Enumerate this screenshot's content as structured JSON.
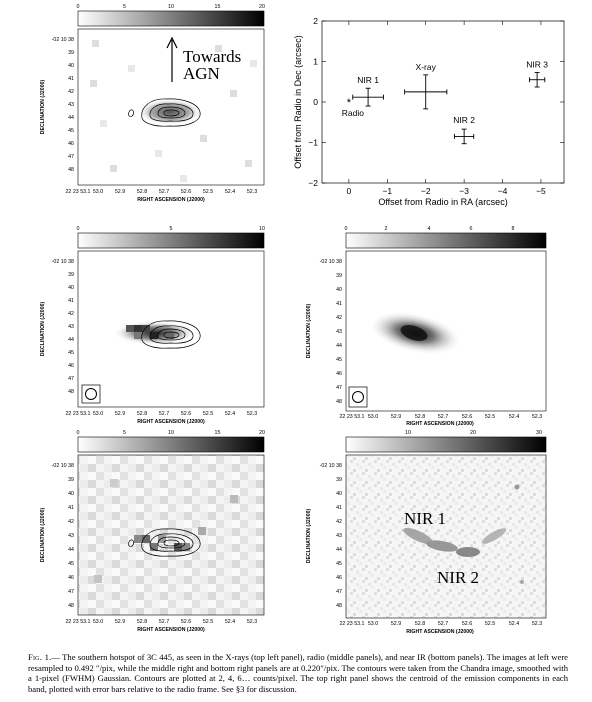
{
  "figure": {
    "caption": {
      "label": "Fig. 1.",
      "text": "— The southern hotspot of 3C 445, as seen in the X-rays (top left panel), radio (middle panels), and near IR (bottom panels). The images at left were resampled to 0.492 ″/pix, while the middle right and bottom right panels are at 0.220″/pix. The contours were taken from the Chandra image, smoothed with a 1-pixel (FWHM) Gaussian. Contours are plotted at 2, 4, 6… counts/pixel. The top right panel shows the centroid of the emission components in each band, plotted with error bars relative to the radio frame. See §3 for discussion."
    },
    "panels": {
      "top_left": {
        "colorbar_ticks": [
          "0",
          "5",
          "10",
          "15",
          "20"
        ],
        "dec_labels": [
          "-02 10 38",
          "39",
          "40",
          "41",
          "42",
          "43",
          "44",
          "45",
          "46",
          "47",
          "48"
        ],
        "ra_labels": [
          "22 23 53.1",
          "53.0",
          "52.9",
          "52.8",
          "52.7",
          "52.6",
          "52.5",
          "52.4",
          "52.3"
        ],
        "ylabel": "DECLINATION (J2000)",
        "xlabel": "RIGHT ASCENSION (J2000)",
        "annotation_line1": "Towards",
        "annotation_line2": "AGN"
      },
      "mid_left": {
        "colorbar_ticks": [
          "0",
          "5",
          "10"
        ],
        "dec_labels": [
          "-02 10 38",
          "39",
          "40",
          "41",
          "42",
          "43",
          "44",
          "45",
          "46",
          "47",
          "48"
        ],
        "ra_labels": [
          "22 23 53.1",
          "53.0",
          "52.9",
          "52.8",
          "52.7",
          "52.6",
          "52.5",
          "52.4",
          "52.3"
        ],
        "ylabel": "DECLINATION (J2000)",
        "xlabel": "RIGHT ASCENSION (J2000)"
      },
      "mid_right": {
        "colorbar_ticks": [
          "0",
          "2",
          "4",
          "6",
          "8"
        ],
        "dec_labels": [
          "-02 10 38",
          "39",
          "40",
          "41",
          "42",
          "43",
          "44",
          "45",
          "46",
          "47",
          "48"
        ],
        "ra_labels": [
          "22 23 53.1",
          "53.0",
          "52.9",
          "52.8",
          "52.7",
          "52.6",
          "52.5",
          "52.4",
          "52.3"
        ],
        "ylabel": "DECLINATION (J2000)",
        "xlabel": "RIGHT ASCENSION (J2000)"
      },
      "bot_left": {
        "colorbar_ticks": [
          "0",
          "5",
          "10",
          "15",
          "20"
        ],
        "dec_labels": [
          "-02 10 38",
          "39",
          "40",
          "41",
          "42",
          "43",
          "44",
          "45",
          "46",
          "47",
          "48"
        ],
        "ra_labels": [
          "22 23 53.1",
          "53.0",
          "52.9",
          "52.8",
          "52.7",
          "52.6",
          "52.5",
          "52.4",
          "52.3"
        ],
        "ylabel": "DECLINATION (J2000)",
        "xlabel": "RIGHT ASCENSION (J2000)"
      },
      "bot_right": {
        "colorbar_ticks": [
          "10",
          "20",
          "30"
        ],
        "dec_labels": [
          "-02 10 38",
          "39",
          "40",
          "41",
          "42",
          "43",
          "44",
          "45",
          "46",
          "47",
          "48"
        ],
        "ra_labels": [
          "22 23 53.1",
          "53.0",
          "52.9",
          "52.8",
          "52.7",
          "52.6",
          "52.5",
          "52.4",
          "52.3"
        ],
        "ylabel": "DECLINATION (J2000)",
        "xlabel": "RIGHT ASCENSION (J2000)",
        "annotation_1": "NIR 1",
        "annotation_2": "NIR 2"
      }
    }
  },
  "chart_data": {
    "type": "scatter",
    "xlabel": "Offset from Radio in RA (arcsec)",
    "ylabel": "Offset from Radio in Dec (arcsec)",
    "xlim": [
      0.7,
      -5.6
    ],
    "ylim": [
      -2,
      2
    ],
    "x_ticks": [
      "0",
      "−1",
      "−2",
      "−3",
      "−4",
      "−5"
    ],
    "y_ticks": [
      "−2",
      "−1",
      "0",
      "1",
      "2"
    ],
    "points": [
      {
        "label": "Radio",
        "x": 0,
        "y": 0,
        "xerr": 0,
        "yerr": 0,
        "marker": "star"
      },
      {
        "label": "NIR 1",
        "x": -0.5,
        "y": 0.12,
        "xerr": 0.4,
        "yerr": 0.22
      },
      {
        "label": "X-ray",
        "x": -2.0,
        "y": 0.25,
        "xerr": 0.55,
        "yerr": 0.42
      },
      {
        "label": "NIR 2",
        "x": -3.0,
        "y": -0.85,
        "xerr": 0.25,
        "yerr": 0.18
      },
      {
        "label": "NIR 3",
        "x": -4.9,
        "y": 0.55,
        "xerr": 0.2,
        "yerr": 0.18
      }
    ]
  }
}
